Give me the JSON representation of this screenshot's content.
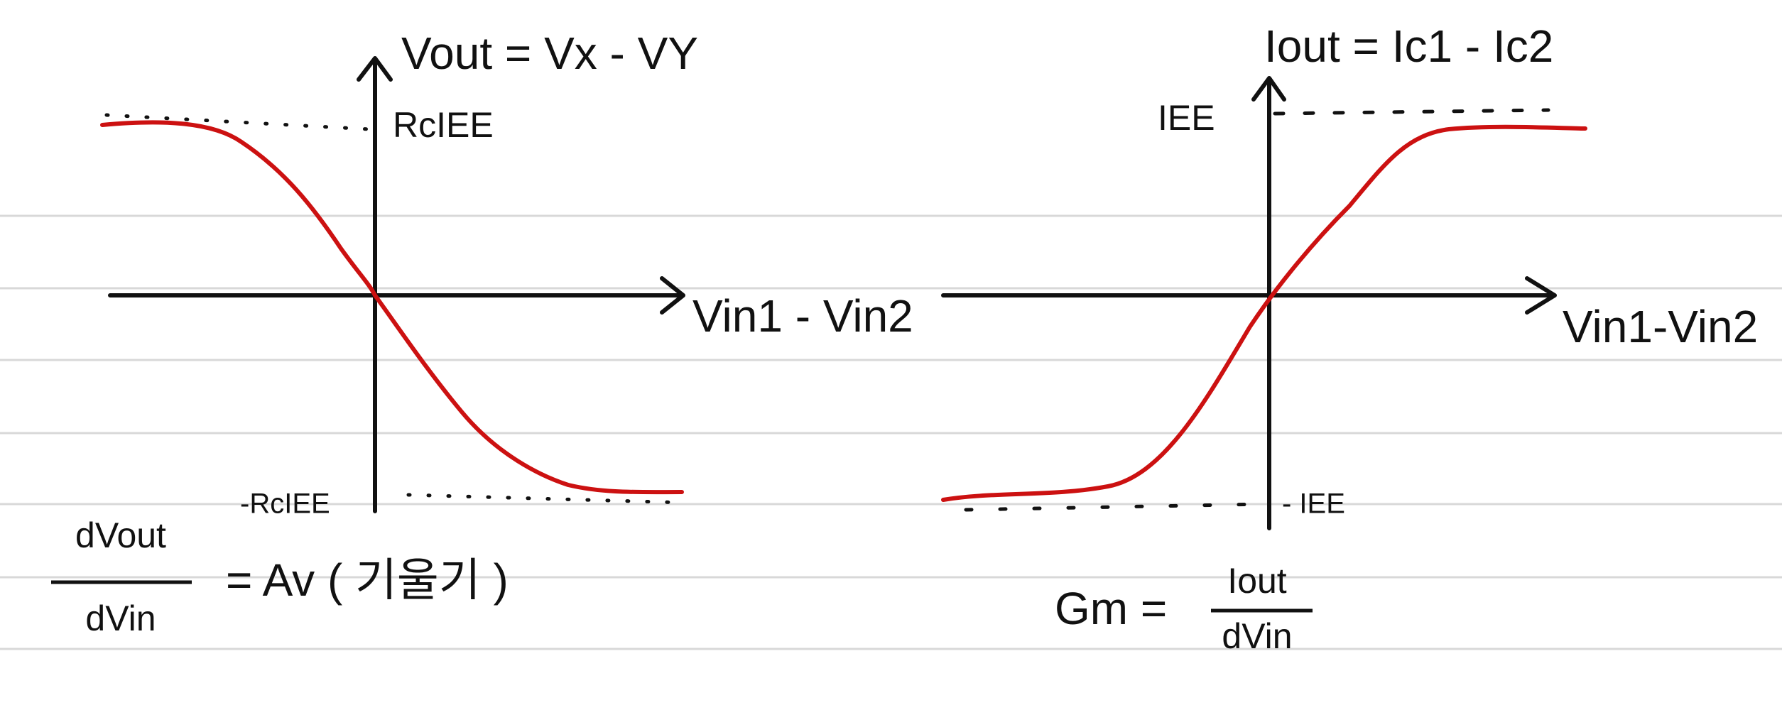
{
  "left_graph": {
    "y_axis_label": "Vout = Vx - VY",
    "top_level": "RcIEE",
    "bottom_level": "-RcIEE",
    "x_axis_label": "Vin1 - Vin2"
  },
  "left_formula": {
    "numerator": "dVout",
    "denominator": "dVin",
    "rhs": "= Av ( 기울기 )"
  },
  "right_graph": {
    "y_axis_label": "Iout = Ic1 - Ic2",
    "top_level": "IEE",
    "bottom_level": "- IEE",
    "x_axis_label": "Vin1-Vin2"
  },
  "right_formula": {
    "lhs": "Gm =",
    "numerator": "Iout",
    "denominator": "dVin"
  }
}
